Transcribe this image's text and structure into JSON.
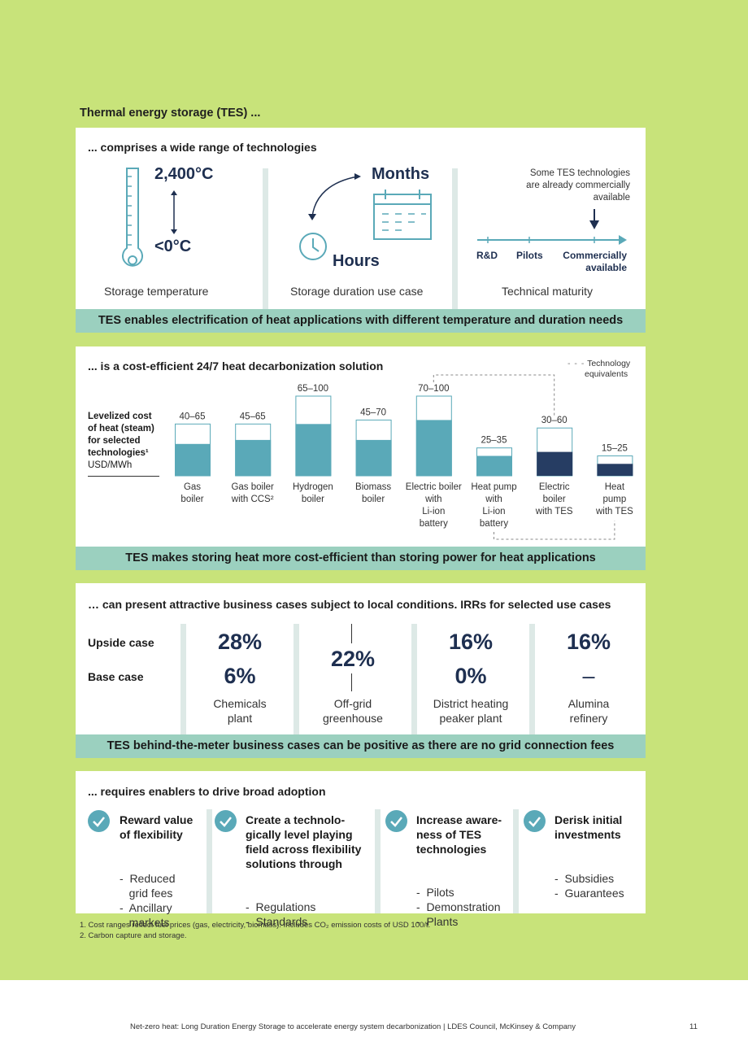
{
  "page_title": "Thermal energy storage (TES) ...",
  "section1": {
    "title": "... comprises a wide range of technologies",
    "temp_high": "2,400°C",
    "temp_low": "<0°C",
    "temp_label": "Storage temperature",
    "duration_long": "Months",
    "duration_short": "Hours",
    "duration_label": "Storage duration use case",
    "maturity_note_1": "Some TES technologies",
    "maturity_note_2": "are already commercially",
    "maturity_note_3": "available",
    "maturity_stage_1": "R&D",
    "maturity_stage_2": "Pilots",
    "maturity_stage_3a": "Commercially",
    "maturity_stage_3b": "available",
    "maturity_label": "Technical maturity",
    "band": "TES enables electrification of heat applications with different temperature and duration needs"
  },
  "section2": {
    "title": "... is a cost-efficient 24/7 heat decarbonization solution",
    "legend_1": "Technology",
    "legend_2": "equivalents",
    "ylabel_1": "Levelized cost",
    "ylabel_2": "of heat (steam)",
    "ylabel_3": "for selected",
    "ylabel_4": "technologies¹",
    "ylabel_unit": "USD/MWh",
    "band": "TES makes storing heat more cost-efficient than storing power for heat applications"
  },
  "chart_data": {
    "type": "bar",
    "title": "... is a cost-efficient 24/7 heat decarbonization solution",
    "ylabel": "Levelized cost of heat (steam) for selected technologies¹ USD/MWh",
    "categories": [
      "Gas boiler",
      "Gas boiler with CCS²",
      "Hydrogen boiler",
      "Biomass boiler",
      "Electric boiler with Li-ion battery",
      "Heat pump with Li-ion battery",
      "Electric boiler with TES",
      "Heat pump with TES"
    ],
    "category_lines": [
      [
        "Gas",
        "boiler"
      ],
      [
        "Gas boiler",
        "with CCS²"
      ],
      [
        "Hydrogen",
        "boiler"
      ],
      [
        "Biomass",
        "boiler"
      ],
      [
        "Electric boiler",
        "with",
        "Li-ion",
        "battery"
      ],
      [
        "Heat pump",
        "with",
        "Li-ion",
        "battery"
      ],
      [
        "Electric",
        "boiler",
        "with TES"
      ],
      [
        "Heat",
        "pump",
        "with TES"
      ]
    ],
    "range_labels": [
      "40–65",
      "45–65",
      "65–100",
      "45–70",
      "70–100",
      "25–35",
      "30–60",
      "15–25"
    ],
    "low": [
      40,
      45,
      65,
      45,
      70,
      25,
      30,
      15
    ],
    "high": [
      65,
      65,
      100,
      70,
      100,
      35,
      60,
      25
    ],
    "tes": [
      false,
      false,
      false,
      false,
      false,
      false,
      true,
      true
    ],
    "colors": {
      "conventional": "#5aa9b8",
      "tes": "#263d63",
      "range_outline": "#5aa9b8"
    },
    "ylim": [
      0,
      100
    ],
    "legend": "Technology equivalents"
  },
  "section3": {
    "title": "… can present attractive business cases subject to local conditions. IRRs for selected use cases",
    "row_upside": "Upside case",
    "row_base": "Base case",
    "cases": [
      {
        "upside": "28%",
        "base": "6%",
        "label_1": "Chemicals",
        "label_2": "plant"
      },
      {
        "single": "22%",
        "label_1": "Off-grid",
        "label_2": "greenhouse"
      },
      {
        "upside": "16%",
        "base": "0%",
        "label_1": "District heating",
        "label_2": "peaker plant"
      },
      {
        "upside": "16%",
        "base": "–",
        "label_1": "Alumina",
        "label_2": "refinery"
      }
    ],
    "band": "TES behind-the-meter business cases can be positive as there are no grid connection fees"
  },
  "section4": {
    "title": "... requires enablers to drive broad adoption",
    "enablers": [
      {
        "head": [
          "Reward value",
          "of flexibility"
        ],
        "items": [
          "-  Reduced",
          "   grid fees",
          "-  Ancillary",
          "   markets"
        ]
      },
      {
        "head": [
          "Create a technolo-",
          "gically level playing",
          "field across flexibility",
          "solutions through"
        ],
        "items": [
          "-  Regulations",
          "-  Standards"
        ]
      },
      {
        "head": [
          "Increase aware-",
          "ness of TES",
          "technologies"
        ],
        "items": [
          "-  Pilots",
          "-  Demonstration",
          "-  Plants"
        ]
      },
      {
        "head": [
          "Derisk initial",
          "investments"
        ],
        "items": [
          "-  Subsidies",
          "-  Guarantees"
        ]
      }
    ]
  },
  "footnotes": {
    "f1": "1.  Cost ranges reflect fuel prices (gas, electricity, biomass). Includes CO₂ emission costs of USD 100/t.",
    "f2": "2.  Carbon capture and storage."
  },
  "footer": {
    "text": "Net-zero heat: Long Duration Energy Storage to accelerate energy system decarbonization | LDES Council, McKinsey & Company",
    "page": "11"
  },
  "colors": {
    "green_bg": "#c8e37a",
    "teal": "#5aa9b8",
    "navy": "#263d63",
    "band": "#9bd0bf"
  }
}
